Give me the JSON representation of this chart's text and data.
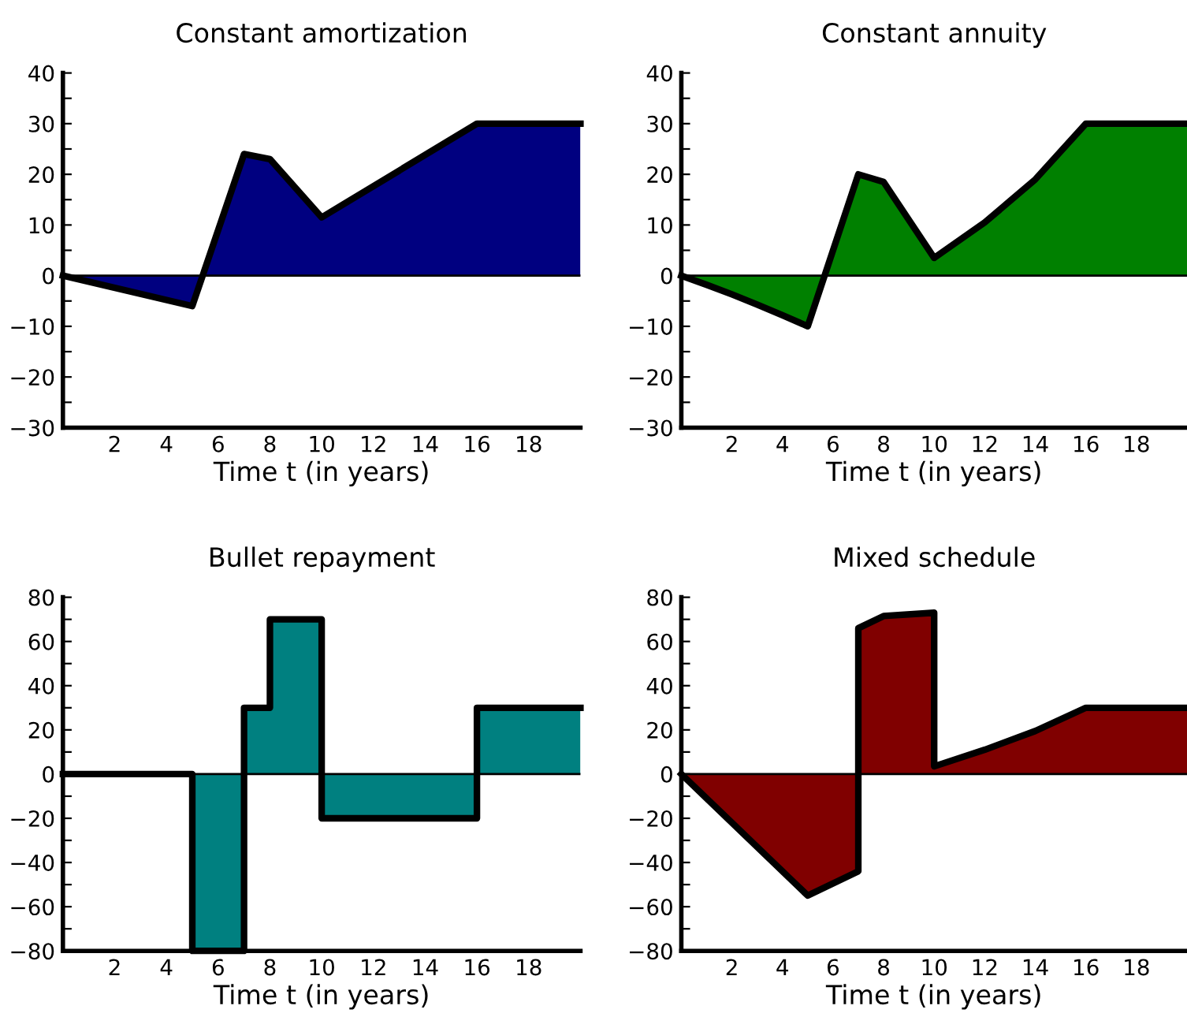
{
  "chart_data": [
    {
      "type": "area",
      "title": "Constant amortization",
      "xlabel": "Time t (in years)",
      "x": [
        0,
        5,
        7,
        8,
        10,
        16,
        20
      ],
      "series": [
        {
          "color": "#000080",
          "values": [
            0,
            -6,
            24,
            23,
            11.5,
            30,
            30
          ]
        }
      ],
      "xlim": [
        0,
        20
      ],
      "xticks": [
        2,
        4,
        6,
        8,
        10,
        12,
        14,
        16,
        18
      ],
      "ylim": [
        -30,
        40
      ],
      "yticks": [
        -30,
        {
          "value": -25,
          "label": null
        },
        -20,
        {
          "value": -15,
          "label": null
        },
        -10,
        {
          "value": -5,
          "label": null
        },
        0,
        {
          "value": 5,
          "label": null
        },
        10,
        {
          "value": 15,
          "label": null
        },
        20,
        {
          "value": 25,
          "label": null
        },
        30,
        {
          "value": 35,
          "label": null
        },
        40
      ],
      "ref_lines": [
        {
          "axis": "y",
          "value": 0,
          "color": "#000000"
        }
      ],
      "grid": false,
      "legend": false,
      "line_style": "solid"
    },
    {
      "type": "area",
      "title": "Constant annuity",
      "xlabel": "Time t (in years)",
      "x": [
        0,
        1,
        2,
        3,
        4,
        5,
        7,
        8,
        10,
        12,
        14,
        16,
        20
      ],
      "series": [
        {
          "color": "#008000",
          "values": [
            0,
            -1.8,
            -3.7,
            -5.7,
            -7.8,
            -10,
            20,
            18.5,
            3.5,
            10.5,
            19,
            30,
            30
          ]
        }
      ],
      "xlim": [
        0,
        20
      ],
      "xticks": [
        2,
        4,
        6,
        8,
        10,
        12,
        14,
        16,
        18
      ],
      "ylim": [
        -30,
        40
      ],
      "yticks": [
        -30,
        {
          "value": -25,
          "label": null
        },
        -20,
        {
          "value": -15,
          "label": null
        },
        -10,
        {
          "value": -5,
          "label": null
        },
        0,
        {
          "value": 5,
          "label": null
        },
        10,
        {
          "value": 15,
          "label": null
        },
        20,
        {
          "value": 25,
          "label": null
        },
        30,
        {
          "value": 35,
          "label": null
        },
        40
      ],
      "ref_lines": [
        {
          "axis": "y",
          "value": 0,
          "color": "#000000"
        }
      ],
      "grid": false,
      "legend": false,
      "line_style": "solid"
    },
    {
      "type": "area",
      "title": "Bullet repayment",
      "xlabel": "Time t (in years)",
      "x": [
        0,
        5,
        5,
        7,
        7,
        8,
        8,
        10,
        10,
        16,
        16,
        20
      ],
      "series": [
        {
          "color": "#008080",
          "values": [
            0,
            0,
            -80,
            -80,
            30,
            30,
            70,
            70,
            -20,
            -20,
            30,
            30
          ]
        }
      ],
      "xlim": [
        0,
        20
      ],
      "xticks": [
        2,
        4,
        6,
        8,
        10,
        12,
        14,
        16,
        18
      ],
      "ylim": [
        -80,
        80
      ],
      "yticks": [
        -80,
        {
          "value": -70,
          "label": null
        },
        -60,
        {
          "value": -50,
          "label": null
        },
        -40,
        {
          "value": -30,
          "label": null
        },
        -20,
        {
          "value": -10,
          "label": null
        },
        0,
        {
          "value": 10,
          "label": null
        },
        20,
        {
          "value": 30,
          "label": null
        },
        40,
        {
          "value": 50,
          "label": null
        },
        60,
        {
          "value": 70,
          "label": null
        },
        80
      ],
      "ref_lines": [
        {
          "axis": "y",
          "value": 0,
          "color": "#000000"
        }
      ],
      "grid": false,
      "legend": false,
      "line_style": "solid"
    },
    {
      "type": "area",
      "title": "Mixed schedule",
      "xlabel": "Time t (in years)",
      "x": [
        0,
        5,
        7,
        7,
        8,
        10,
        10,
        12,
        14,
        16,
        20
      ],
      "series": [
        {
          "color": "#800000",
          "values": [
            0,
            -55,
            -44,
            66,
            71.5,
            73,
            3.5,
            11,
            19.5,
            30,
            30
          ]
        }
      ],
      "xlim": [
        0,
        20
      ],
      "xticks": [
        2,
        4,
        6,
        8,
        10,
        12,
        14,
        16,
        18
      ],
      "ylim": [
        -80,
        80
      ],
      "yticks": [
        -80,
        {
          "value": -70,
          "label": null
        },
        -60,
        {
          "value": -50,
          "label": null
        },
        -40,
        {
          "value": -30,
          "label": null
        },
        -20,
        {
          "value": -10,
          "label": null
        },
        0,
        {
          "value": 10,
          "label": null
        },
        20,
        {
          "value": 30,
          "label": null
        },
        40,
        {
          "value": 50,
          "label": null
        },
        60,
        {
          "value": 70,
          "label": null
        },
        80
      ],
      "ref_lines": [
        {
          "axis": "y",
          "value": 0,
          "color": "#000000"
        }
      ],
      "grid": false,
      "legend": false,
      "line_style": "solid"
    }
  ]
}
